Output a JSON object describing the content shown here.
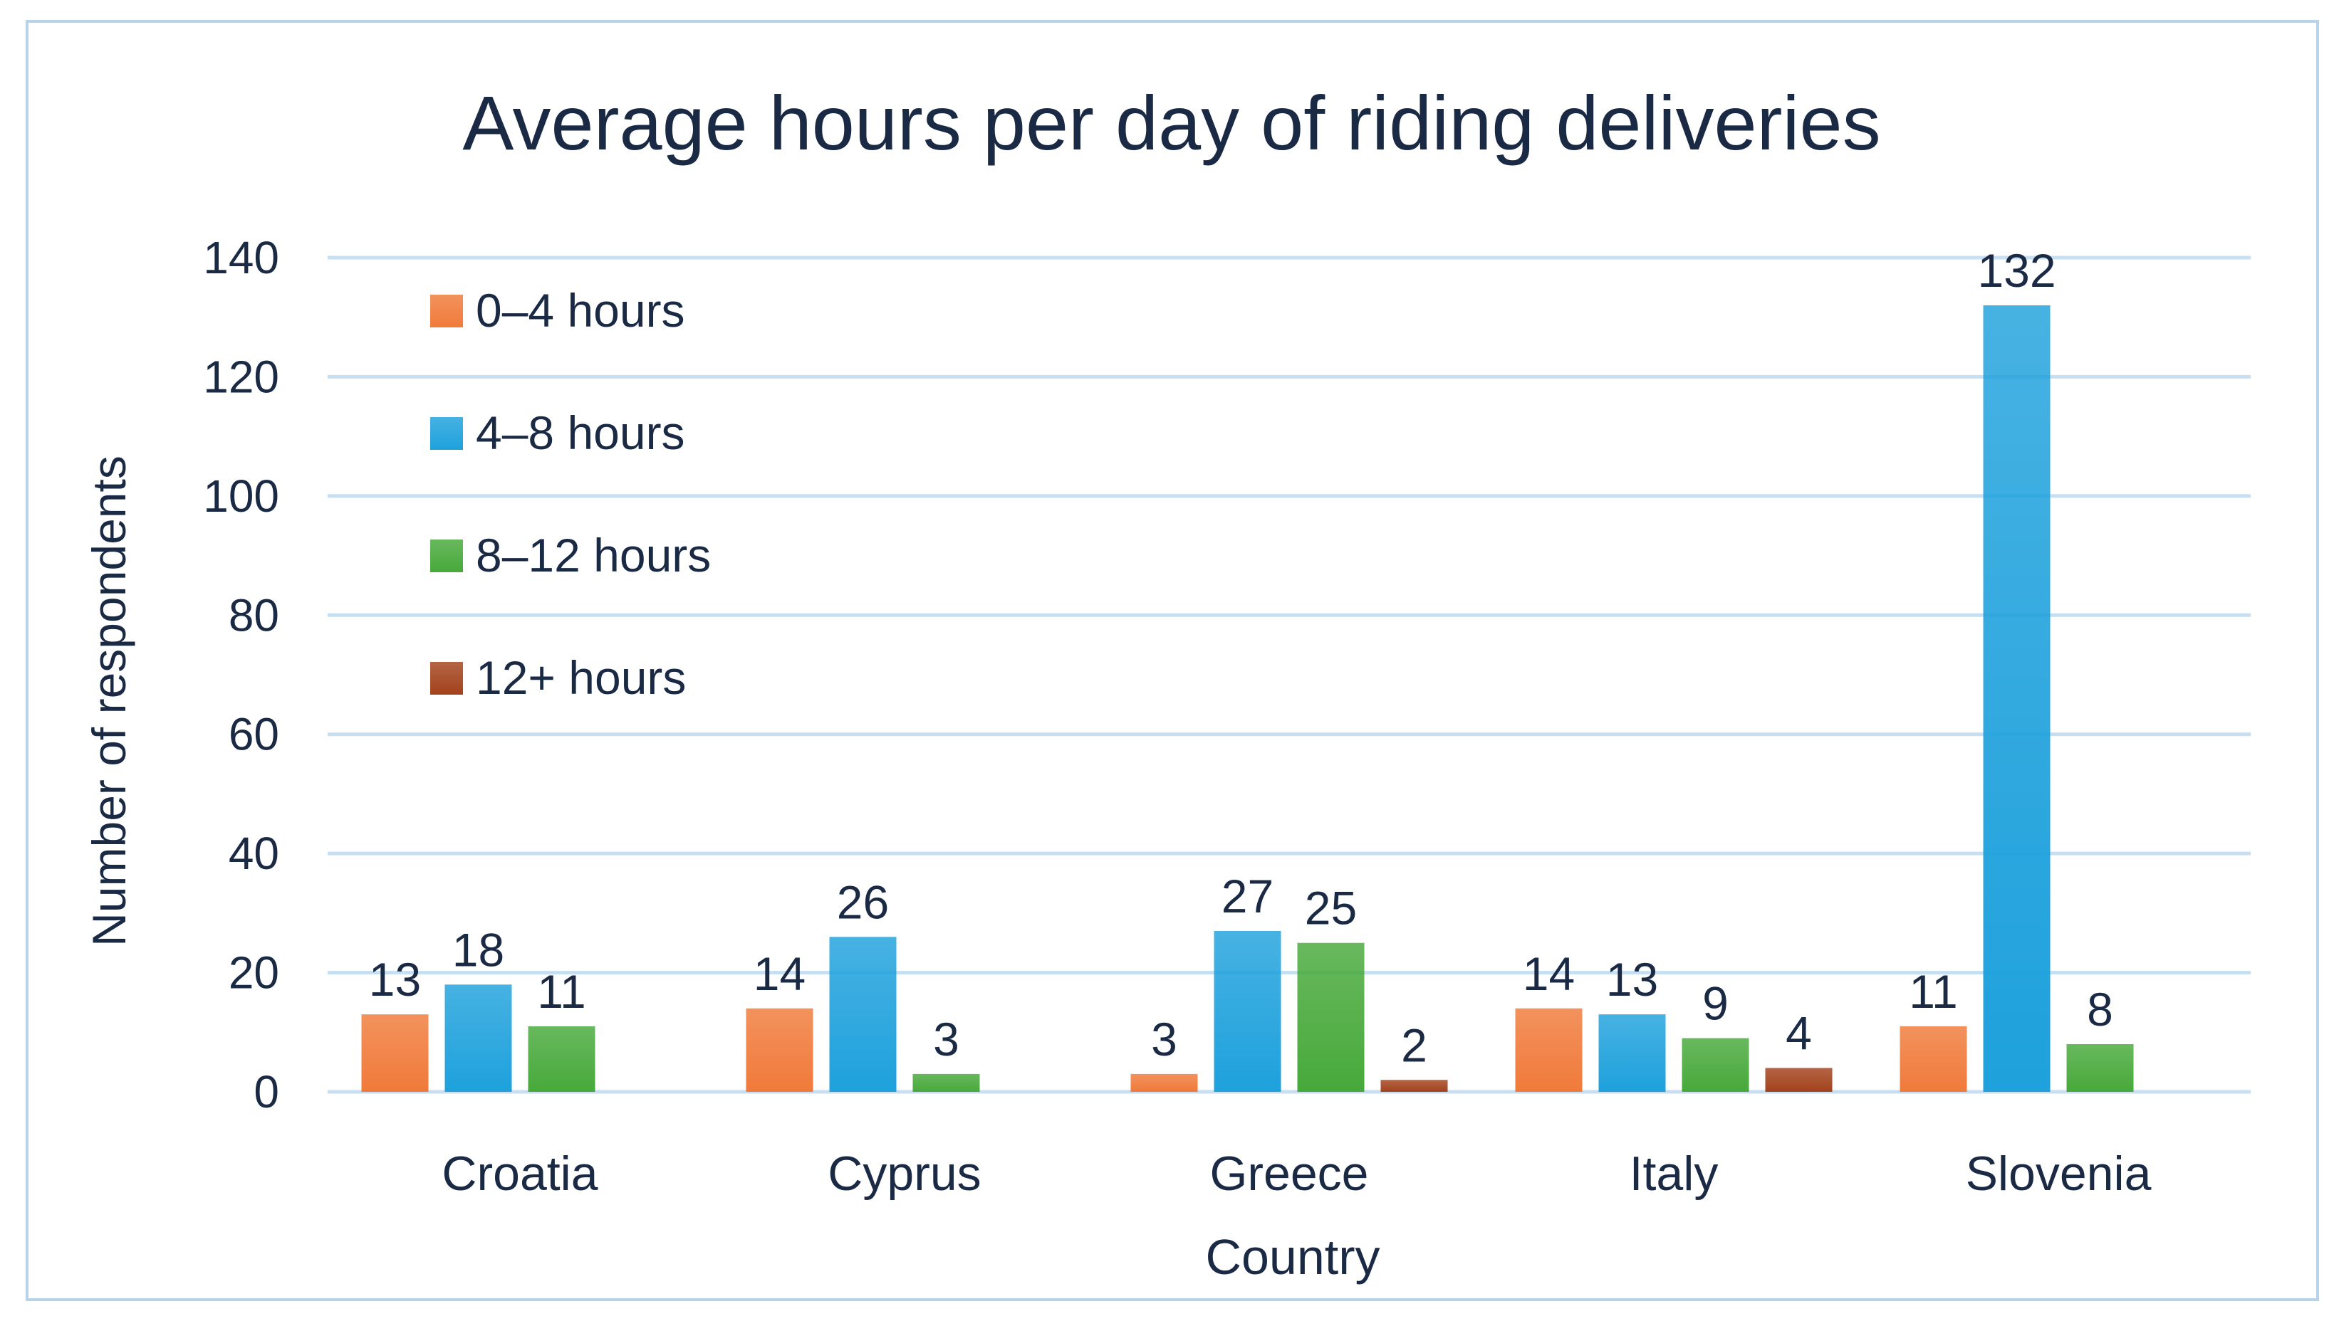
{
  "chart_data": {
    "type": "bar",
    "title": "Average hours per day of riding deliveries",
    "xlabel": "Country",
    "ylabel": "Number of respondents",
    "ylim": [
      0,
      140
    ],
    "yticks": [
      0,
      20,
      40,
      60,
      80,
      100,
      120,
      140
    ],
    "grid": true,
    "legend_position": "top-left",
    "categories": [
      "Croatia",
      "Cyprus",
      "Greece",
      "Italy",
      "Slovenia"
    ],
    "series": [
      {
        "name": "0–4 hours",
        "color": "#f07a3a",
        "values": [
          13,
          14,
          3,
          14,
          11
        ]
      },
      {
        "name": "4–8 hours",
        "color": "#1ea1dc",
        "values": [
          18,
          26,
          27,
          13,
          132
        ]
      },
      {
        "name": "8–12 hours",
        "color": "#47a93a",
        "values": [
          11,
          3,
          25,
          9,
          8
        ]
      },
      {
        "name": "12+ hours",
        "color": "#a3421c",
        "values": [
          null,
          null,
          2,
          4,
          null
        ]
      }
    ],
    "colors": {
      "grid": "#c6dff2",
      "text": "#1b2a44",
      "frame": "#b7d3ea"
    }
  }
}
